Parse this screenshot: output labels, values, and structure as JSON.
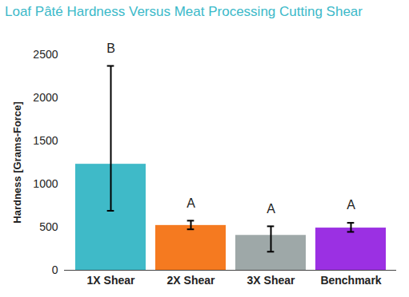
{
  "chart_data": {
    "type": "bar",
    "title": "Loaf Pâté Hardness Versus Meat Processing Cutting Shear",
    "y_label": "Hardness [Grams-Force]",
    "categories": [
      "1X Shear",
      "2X Shear",
      "3X Shear",
      "Benchmark"
    ],
    "values": [
      1230,
      520,
      405,
      490
    ],
    "colors": [
      "#3fbac8",
      "#f57a20",
      "#9ea8a8",
      "#9b30e3"
    ],
    "error_low": [
      690,
      475,
      215,
      445
    ],
    "error_high": [
      2370,
      575,
      510,
      550
    ],
    "annotations": [
      "B",
      "A",
      "A",
      "A"
    ],
    "ylim": [
      0,
      2500
    ],
    "yticks": [
      0,
      500,
      1000,
      1500,
      2000,
      2500
    ],
    "grid": false
  }
}
